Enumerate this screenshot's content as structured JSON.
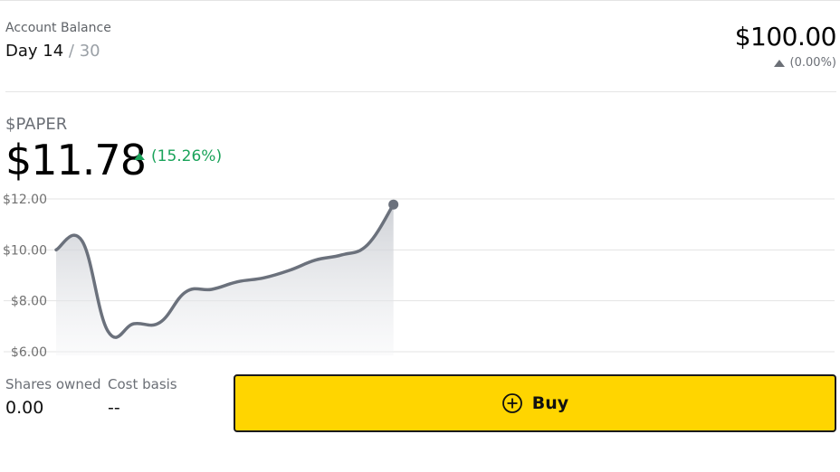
{
  "account": {
    "label": "Account Balance",
    "day_prefix": "Day",
    "day": "14",
    "day_total": "/ 30",
    "balance": "$100.00",
    "balance_change": "(0.00%)"
  },
  "stock": {
    "ticker": "$PAPER",
    "price": "$11.78",
    "change": "(15.26%)"
  },
  "stats": {
    "shares_label": "Shares owned",
    "shares_value": "0.00",
    "cost_label": "Cost basis",
    "cost_value": "--"
  },
  "buy": {
    "label": "Buy"
  },
  "colors": {
    "buy_bg": "#ffd500",
    "up_green": "#1aa35a",
    "line": "#6b717c"
  },
  "chart_data": {
    "type": "area",
    "x": [
      1,
      2,
      3,
      4,
      5,
      6,
      7,
      8,
      9,
      10,
      11,
      12,
      13,
      14
    ],
    "values": [
      10.0,
      10.35,
      6.8,
      7.1,
      7.15,
      8.35,
      8.45,
      8.75,
      8.9,
      9.2,
      9.6,
      9.8,
      10.2,
      11.78
    ],
    "x_total": 30,
    "y_ticks": [
      "$12.00",
      "$10.00",
      "$8.00",
      "$6.00"
    ],
    "y_tick_values": [
      12,
      10,
      8,
      6
    ],
    "ylim": [
      6,
      12
    ],
    "grid": true
  }
}
